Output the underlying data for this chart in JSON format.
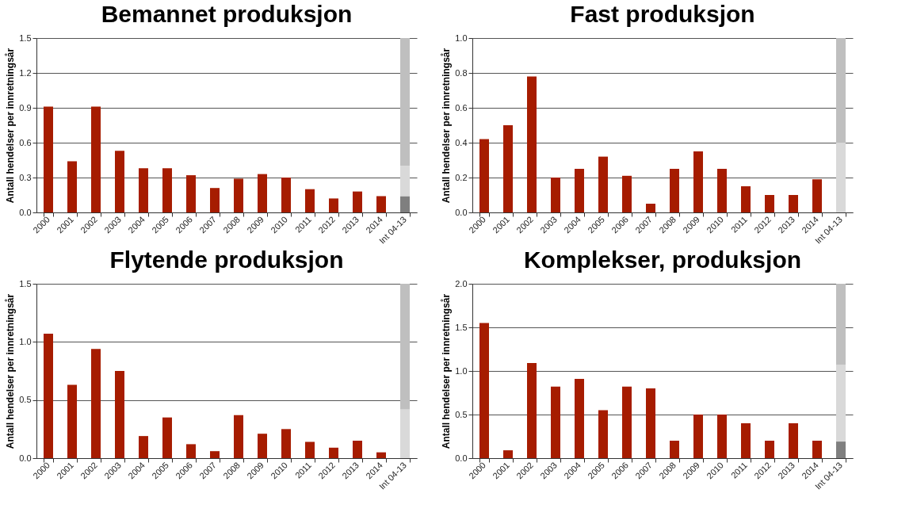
{
  "chart_data": [
    {
      "type": "bar",
      "title": "Bemannet produksjon",
      "ylabel": "Antall hendelser per innretningsår",
      "categories": [
        "2000",
        "2001",
        "2002",
        "2003",
        "2004",
        "2005",
        "2006",
        "2007",
        "2008",
        "2009",
        "2010",
        "2011",
        "2012",
        "2013",
        "2014",
        "Int 04-13"
      ],
      "stacked": true,
      "grid": "y",
      "legend": false,
      "ylim": [
        0,
        1.5
      ],
      "yticks": [
        {
          "value": 0,
          "label": "0.0"
        },
        0.3,
        0.6,
        0.9,
        1.2,
        1.5
      ],
      "series": [
        {
          "color": "#a61c00",
          "values": [
            0.91,
            0.44,
            0.91,
            0.53,
            0.38,
            0.38,
            0.32,
            0.21,
            0.29,
            0.33,
            0.3,
            0.2,
            0.12,
            0.18,
            0.14,
            null
          ]
        },
        {
          "color": "#7f7f7f",
          "values": [
            null,
            null,
            null,
            null,
            null,
            null,
            null,
            null,
            null,
            null,
            null,
            null,
            null,
            null,
            null,
            0.14
          ]
        },
        {
          "color": "#d9d9d9",
          "values": [
            null,
            null,
            null,
            null,
            null,
            null,
            null,
            null,
            null,
            null,
            null,
            null,
            null,
            null,
            null,
            0.26
          ]
        },
        {
          "color": "#bfbfbf",
          "values": [
            null,
            null,
            null,
            null,
            null,
            null,
            null,
            null,
            null,
            null,
            null,
            null,
            null,
            null,
            null,
            1.1
          ]
        }
      ]
    },
    {
      "type": "bar",
      "title": "Fast produksjon",
      "ylabel": "Antall hendelser per innretningsår",
      "categories": [
        "2000",
        "2001",
        "2002",
        "2003",
        "2004",
        "2005",
        "2006",
        "2007",
        "2008",
        "2009",
        "2010",
        "2011",
        "2012",
        "2013",
        "2014",
        "Int 04-13"
      ],
      "stacked": true,
      "grid": "y",
      "legend": false,
      "ylim": [
        0,
        1.0
      ],
      "yticks": [
        {
          "value": 0,
          "label": "0.0"
        },
        0.2,
        0.4,
        0.6,
        0.8,
        {
          "value": 1,
          "label": "1.0"
        }
      ],
      "series": [
        {
          "color": "#a61c00",
          "values": [
            0.42,
            0.5,
            0.78,
            0.2,
            0.25,
            0.32,
            0.21,
            0.05,
            0.25,
            0.35,
            0.25,
            0.15,
            0.1,
            0.1,
            0.19,
            null
          ]
        },
        {
          "color": "#d9d9d9",
          "values": [
            null,
            null,
            null,
            null,
            null,
            null,
            null,
            null,
            null,
            null,
            null,
            null,
            null,
            null,
            null,
            0.4
          ]
        },
        {
          "color": "#bfbfbf",
          "values": [
            null,
            null,
            null,
            null,
            null,
            null,
            null,
            null,
            null,
            null,
            null,
            null,
            null,
            null,
            null,
            0.6
          ]
        }
      ]
    },
    {
      "type": "bar",
      "title": "Flytende produksjon",
      "ylabel": "Antall hendelser per innretningsår",
      "categories": [
        "2000",
        "2001",
        "2002",
        "2003",
        "2004",
        "2005",
        "2006",
        "2007",
        "2008",
        "2009",
        "2010",
        "2011",
        "2012",
        "2013",
        "2014",
        "Int 04-13"
      ],
      "stacked": true,
      "grid": "y",
      "legend": false,
      "ylim": [
        0,
        1.5
      ],
      "yticks": [
        {
          "value": 0,
          "label": "0.0"
        },
        0.5,
        {
          "value": 1,
          "label": "1.0"
        },
        1.5
      ],
      "series": [
        {
          "color": "#a61c00",
          "values": [
            1.07,
            0.63,
            0.94,
            0.75,
            0.19,
            0.35,
            0.12,
            0.06,
            0.37,
            0.21,
            0.25,
            0.14,
            0.09,
            0.15,
            0.05,
            null
          ]
        },
        {
          "color": "#d9d9d9",
          "values": [
            null,
            null,
            null,
            null,
            null,
            null,
            null,
            null,
            null,
            null,
            null,
            null,
            null,
            null,
            null,
            0.42
          ]
        },
        {
          "color": "#bfbfbf",
          "values": [
            null,
            null,
            null,
            null,
            null,
            null,
            null,
            null,
            null,
            null,
            null,
            null,
            null,
            null,
            null,
            1.08
          ]
        }
      ]
    },
    {
      "type": "bar",
      "title": "Komplekser, produksjon",
      "ylabel": "Antall hendelser per innretningsår",
      "categories": [
        "2000",
        "2001",
        "2002",
        "2003",
        "2004",
        "2005",
        "2006",
        "2007",
        "2008",
        "2009",
        "2010",
        "2011",
        "2012",
        "2013",
        "2014",
        "Int 04-13"
      ],
      "stacked": true,
      "grid": "y",
      "legend": false,
      "ylim": [
        0,
        2.0
      ],
      "yticks": [
        {
          "value": 0,
          "label": "0.0"
        },
        0.5,
        {
          "value": 1,
          "label": "1.0"
        },
        1.5,
        {
          "value": 2,
          "label": "2.0"
        }
      ],
      "series": [
        {
          "color": "#a61c00",
          "values": [
            1.55,
            0.09,
            1.09,
            0.82,
            0.91,
            0.55,
            0.82,
            0.8,
            0.2,
            0.5,
            0.5,
            0.4,
            0.2,
            0.4,
            0.2,
            null
          ]
        },
        {
          "color": "#7f7f7f",
          "values": [
            null,
            null,
            null,
            null,
            null,
            null,
            null,
            null,
            null,
            null,
            null,
            null,
            null,
            null,
            null,
            0.19
          ]
        },
        {
          "color": "#d9d9d9",
          "values": [
            null,
            null,
            null,
            null,
            null,
            null,
            null,
            null,
            null,
            null,
            null,
            null,
            null,
            null,
            null,
            0.88
          ]
        },
        {
          "color": "#bfbfbf",
          "values": [
            null,
            null,
            null,
            null,
            null,
            null,
            null,
            null,
            null,
            null,
            null,
            null,
            null,
            null,
            null,
            0.93
          ]
        }
      ]
    }
  ]
}
